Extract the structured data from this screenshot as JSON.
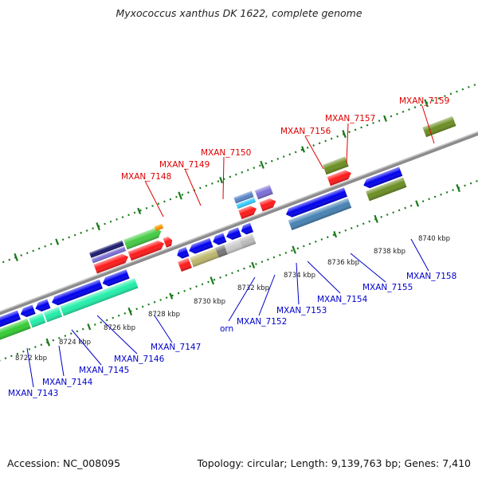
{
  "header": {
    "title": "Myxococcus xanthus DK 1622, complete genome"
  },
  "footer": {
    "accession": "Accession: NC_008095",
    "topology": "Topology: circular; Length: 9,139,763 bp; Genes: 7,410"
  },
  "colors": {
    "forward_label": "#dd0000",
    "reverse_label": "#0000cc",
    "backbone": "#8c8c8c",
    "tick": "#228822"
  },
  "genome_axis": {
    "kbp_labels": [
      "8722 kbp",
      "8724 kbp",
      "8726 kbp",
      "8728 kbp",
      "8730 kbp",
      "8732 kbp",
      "8734 kbp",
      "8736 kbp",
      "8738 kbp",
      "8740 kbp"
    ]
  },
  "genes": {
    "forward": [
      {
        "name": "MXAN_7148"
      },
      {
        "name": "MXAN_7149"
      },
      {
        "name": "MXAN_7150"
      },
      {
        "name": "MXAN_7156"
      },
      {
        "name": "MXAN_7157"
      },
      {
        "name": "MXAN_7159"
      }
    ],
    "reverse": [
      {
        "name": "MXAN_7143"
      },
      {
        "name": "MXAN_7144"
      },
      {
        "name": "MXAN_7145"
      },
      {
        "name": "MXAN_7146"
      },
      {
        "name": "MXAN_7147"
      },
      {
        "name": "orn"
      },
      {
        "name": "MXAN_7152"
      },
      {
        "name": "MXAN_7153"
      },
      {
        "name": "MXAN_7154"
      },
      {
        "name": "MXAN_7155"
      },
      {
        "name": "MXAN_7158"
      }
    ]
  }
}
